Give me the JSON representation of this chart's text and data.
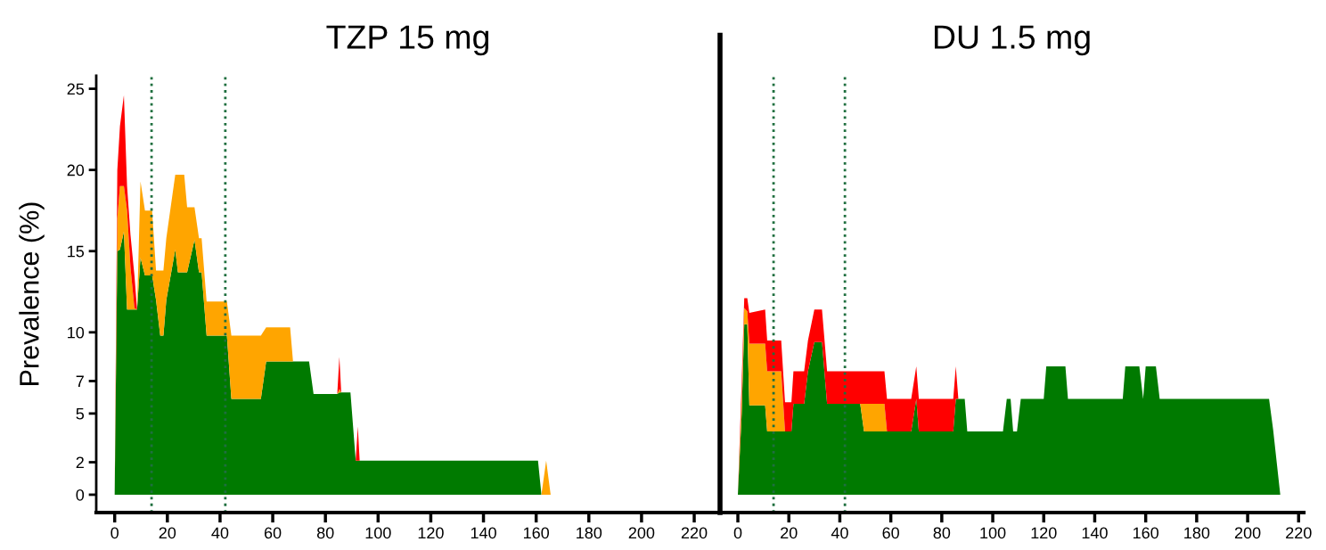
{
  "chart_data": [
    {
      "type": "area",
      "title": "TZP 15 mg",
      "ylabel": "Prevalence (%)",
      "stacked": true,
      "x": [
        0,
        1,
        2,
        3.5,
        4.7,
        6,
        7.5,
        8.5,
        9.8,
        11.5,
        14.2,
        15.7,
        17.3,
        18.5,
        19.6,
        23,
        24,
        26.4,
        27.5,
        30.3,
        32,
        33,
        34.9,
        42.6,
        44.3,
        55.5,
        57.5,
        66.6,
        67.7,
        73.8,
        75.5,
        84.5,
        85.3,
        86,
        89.5,
        91.5,
        92.3,
        93,
        160.7,
        162,
        163.8,
        165.5,
        225
      ],
      "series": [
        {
          "color": "#007a00",
          "values": [
            0,
            15,
            15.1,
            16.2,
            11.4,
            11.4,
            11.4,
            11.4,
            14.6,
            13.5,
            13.5,
            12.0,
            9.8,
            9.8,
            12.0,
            15.1,
            13.7,
            13.7,
            13.7,
            15.7,
            13.7,
            13.7,
            9.8,
            9.8,
            5.9,
            5.9,
            8.2,
            8.2,
            8.2,
            8.2,
            6.2,
            6.2,
            6.3,
            6.3,
            6.3,
            2.1,
            2.1,
            2.1,
            2.1,
            0,
            0,
            0,
            0
          ]
        },
        {
          "color": "#ffa500",
          "values": [
            0,
            2,
            3.9,
            2.8,
            6.1,
            2.6,
            0.1,
            0,
            4.7,
            4.0,
            4.0,
            1.8,
            4.0,
            4.0,
            3.8,
            4.6,
            6.0,
            6.0,
            4.0,
            2.0,
            2.1,
            2.1,
            2.1,
            2.1,
            3.9,
            3.9,
            2.1,
            2.1,
            0,
            0,
            0,
            0,
            0.2,
            0,
            0,
            0,
            0,
            0,
            0,
            0,
            2.1,
            0,
            0
          ]
        },
        {
          "color": "#ff0000",
          "values": [
            0,
            3,
            3.7,
            5.6,
            1.5,
            2.0,
            2.0,
            0,
            0,
            0,
            0,
            0,
            0,
            0,
            0,
            0,
            0,
            0,
            0,
            0,
            0,
            0,
            0,
            0,
            0,
            0,
            0,
            0,
            0,
            0,
            0,
            0,
            2.0,
            0,
            0,
            0,
            2.1,
            0,
            0,
            0,
            0,
            0,
            0
          ]
        }
      ],
      "xlim": [
        -7,
        229.8
      ],
      "xticks": [
        0,
        20,
        40,
        60,
        80,
        100,
        120,
        140,
        160,
        180,
        200,
        220
      ],
      "ylim": [
        -1.1,
        25.8
      ],
      "yticks": [
        0,
        2,
        5,
        7,
        10,
        15,
        20,
        25
      ],
      "ref_lines": [
        {
          "axis": "x",
          "value": 14,
          "color": "#1f6f3f",
          "line_style": "dotted"
        },
        {
          "axis": "x",
          "value": 42,
          "color": "#1f6f3f",
          "line_style": "dotted"
        }
      ]
    },
    {
      "type": "area",
      "title": "DU 1.5 mg",
      "stacked": true,
      "tick_labels": "x",
      "x": [
        0,
        1.5,
        2.5,
        3.7,
        4.5,
        10.7,
        11.5,
        17,
        18.5,
        21,
        21.8,
        26,
        27.5,
        30,
        33,
        35,
        48,
        49.5,
        57.5,
        58.5,
        68,
        70,
        71,
        84.5,
        85.5,
        86.5,
        89,
        90,
        104,
        105.5,
        107,
        108,
        109.5,
        111,
        120,
        121,
        128.5,
        129.5,
        151,
        152,
        157.5,
        159,
        160,
        164,
        165.5,
        208.4,
        210,
        212.8,
        222
      ],
      "series": [
        {
          "color": "#007a00",
          "values": [
            0,
            5,
            10.5,
            10.5,
            5.5,
            5.5,
            3.9,
            3.9,
            3.9,
            3.9,
            5.6,
            5.6,
            7.6,
            9.4,
            9.4,
            5.6,
            5.6,
            3.9,
            3.9,
            3.9,
            3.9,
            5.9,
            3.9,
            3.9,
            5.9,
            5.9,
            5.9,
            3.9,
            3.9,
            5.9,
            5.9,
            3.9,
            3.9,
            5.9,
            5.9,
            7.9,
            7.9,
            5.9,
            5.9,
            7.9,
            7.9,
            5.9,
            7.9,
            7.9,
            5.9,
            5.9,
            4.0,
            0,
            0
          ]
        },
        {
          "color": "#ffa500",
          "values": [
            0,
            1,
            1.0,
            0.8,
            3.8,
            3.8,
            3.7,
            3.7,
            0,
            0,
            0,
            0,
            0,
            0,
            0,
            0,
            0,
            1.7,
            1.7,
            0,
            0,
            0,
            0,
            0,
            0,
            0,
            0,
            0,
            0,
            0,
            0,
            0,
            0,
            0,
            0,
            0,
            0,
            0,
            0,
            0,
            0,
            0,
            0,
            0,
            0,
            0,
            0,
            0,
            0
          ]
        },
        {
          "color": "#ff0000",
          "values": [
            0,
            1,
            0.6,
            0.8,
            1.9,
            2.1,
            1.9,
            1.9,
            1.8,
            1.8,
            2.0,
            2.0,
            1.9,
            2.0,
            2.0,
            2.0,
            2.0,
            2.0,
            2.0,
            2.0,
            2.0,
            2.0,
            2.0,
            2.0,
            2.0,
            0,
            0,
            0,
            0,
            0,
            0,
            0,
            0,
            0,
            0,
            0,
            0,
            0,
            0,
            0,
            0,
            0,
            0,
            0,
            0,
            0,
            0,
            0,
            0
          ]
        }
      ],
      "xlim": [
        -7,
        222
      ],
      "xticks": [
        0,
        20,
        40,
        60,
        80,
        100,
        120,
        140,
        160,
        180,
        200,
        220
      ],
      "ylim": [
        -1.1,
        25.8
      ],
      "yticks": [
        0,
        2,
        5,
        7,
        10,
        15,
        20,
        25
      ],
      "ref_lines": [
        {
          "axis": "x",
          "value": 14,
          "color": "#1f6f3f",
          "line_style": "dotted"
        },
        {
          "axis": "x",
          "value": 42,
          "color": "#1f6f3f",
          "line_style": "dotted"
        }
      ]
    }
  ]
}
